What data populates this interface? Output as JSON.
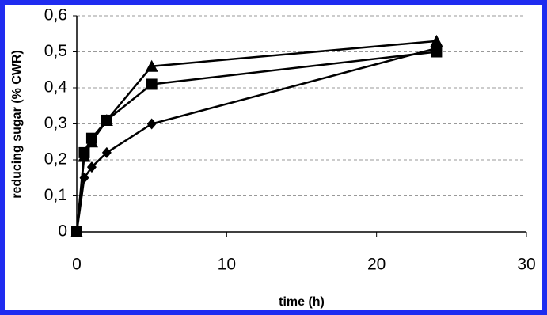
{
  "chart_data": {
    "type": "line",
    "x_label": "time (h)",
    "y_label": "reducing sugar (% CWR)",
    "x": [
      0,
      0.5,
      1,
      2,
      5,
      24
    ],
    "series": [
      {
        "color": "#000000",
        "marker": "triangle",
        "values": [
          0,
          0.21,
          0.25,
          0.31,
          0.46,
          0.53
        ]
      },
      {
        "color": "#000000",
        "marker": "square",
        "values": [
          0,
          0.22,
          0.26,
          0.31,
          0.41,
          0.5
        ]
      },
      {
        "color": "#000000",
        "marker": "diamond",
        "values": [
          0,
          0.15,
          0.18,
          0.22,
          0.3,
          0.51
        ]
      }
    ],
    "xlim": [
      0,
      30
    ],
    "xticks": [
      0,
      10,
      20,
      30
    ],
    "ylim": [
      0,
      0.6
    ],
    "yticks": [
      0,
      {
        "value": 0.1,
        "label": "0,1"
      },
      {
        "value": 0.2,
        "label": "0,2"
      },
      {
        "value": 0.3,
        "label": "0,3"
      },
      {
        "value": 0.4,
        "label": "0,4"
      },
      {
        "value": 0.5,
        "label": "0,5"
      },
      {
        "value": 0.6,
        "label": "0,6"
      }
    ],
    "grid": true
  }
}
